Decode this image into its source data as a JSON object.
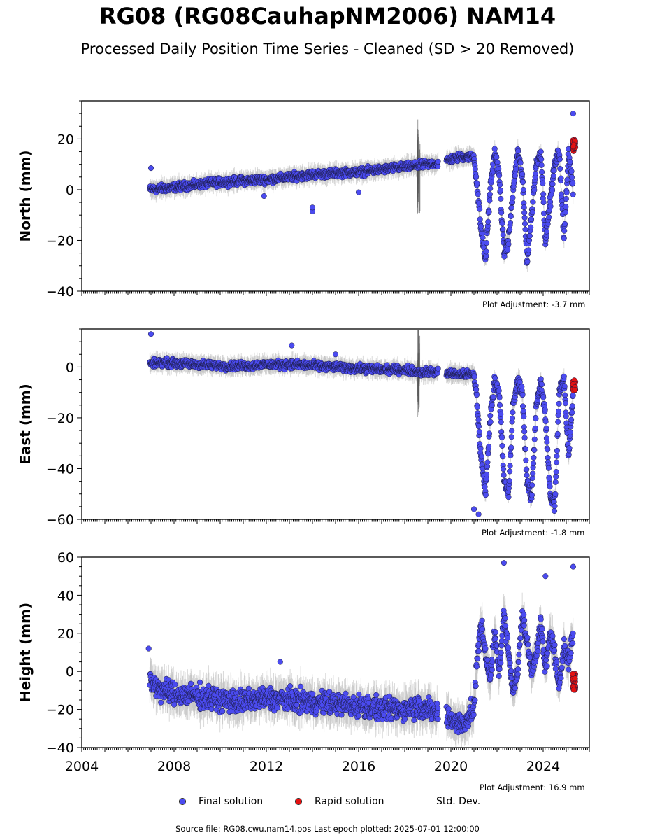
{
  "title": "RG08 (RG08CauhapNM2006) NAM14",
  "subtitle": "Processed Daily Position Time Series - Cleaned (SD > 20 Removed)",
  "legend": {
    "final": "Final solution",
    "rapid": "Rapid solution",
    "std": "Std. Dev."
  },
  "source": "Source file: RG08.cwu.nam14.pos  Last epoch plotted: 2025-07-01 12:00:00",
  "colors": {
    "final": "#4b4bf0",
    "rapid": "#e41111",
    "std": "#bbbbbb",
    "axis": "#000000"
  },
  "chart_data": [
    {
      "type": "scatter",
      "ylabel": "North (mm)",
      "ylim": [
        -40,
        35
      ],
      "yticks": [
        -40,
        -20,
        0,
        20
      ],
      "xlim": [
        2004.0,
        2026.0
      ],
      "adjustment": "Plot Adjustment: -3.7 mm",
      "series": [
        {
          "name": "Final solution",
          "x": [
            2006.9,
            2007.5,
            2008.0,
            2009.0,
            2010.0,
            2011.0,
            2012.0,
            2013.0,
            2014.0,
            2015.0,
            2016.0,
            2017.0,
            2018.0,
            2018.6,
            2019.0,
            2019.5,
            2020.0,
            2020.5,
            2021.0,
            2021.1,
            2021.3,
            2021.5,
            2021.7,
            2021.9,
            2022.1,
            2022.3,
            2022.5,
            2022.7,
            2022.9,
            2023.1,
            2023.3,
            2023.5,
            2023.7,
            2023.9,
            2024.1,
            2024.3,
            2024.5,
            2024.7,
            2024.9,
            2025.1,
            2025.3
          ],
          "y": [
            0,
            0.5,
            1,
            2,
            3,
            3.5,
            4,
            5,
            6,
            6.5,
            7,
            8,
            9,
            9.5,
            10,
            10.5,
            12,
            13,
            13,
            5,
            -15,
            -28,
            0,
            15,
            5,
            -25,
            -20,
            0,
            15,
            5,
            -28,
            -10,
            10,
            15,
            -20,
            -5,
            10,
            15,
            -20,
            15,
            0
          ]
        },
        {
          "name": "Rapid solution",
          "x": [
            2025.3,
            2025.35,
            2025.4,
            2025.45,
            2025.5
          ],
          "y": [
            17,
            19,
            18,
            16,
            18
          ]
        }
      ],
      "outliers": [
        {
          "x": 2007.0,
          "y": 8.5
        },
        {
          "x": 2011.9,
          "y": -2.5
        },
        {
          "x": 2014.0,
          "y": -8.5
        },
        {
          "x": 2014.0,
          "y": -7
        },
        {
          "x": 2016.0,
          "y": -1
        },
        {
          "x": 2025.3,
          "y": 30
        }
      ]
    },
    {
      "type": "scatter",
      "ylabel": "East (mm)",
      "ylim": [
        -60,
        15
      ],
      "yticks": [
        -60,
        -40,
        -20,
        0
      ],
      "xlim": [
        2004.0,
        2026.0
      ],
      "adjustment": "Plot Adjustment: -1.8 mm",
      "series": [
        {
          "name": "Final solution",
          "x": [
            2006.9,
            2007.5,
            2008.0,
            2009.0,
            2010.0,
            2011.0,
            2012.0,
            2013.0,
            2014.0,
            2015.0,
            2016.0,
            2017.0,
            2018.0,
            2018.6,
            2019.0,
            2019.5,
            2020.0,
            2020.5,
            2021.0,
            2021.1,
            2021.3,
            2021.5,
            2021.7,
            2021.9,
            2022.1,
            2022.3,
            2022.5,
            2022.7,
            2022.9,
            2023.1,
            2023.3,
            2023.5,
            2023.7,
            2023.9,
            2024.1,
            2024.3,
            2024.5,
            2024.7,
            2024.9,
            2025.1,
            2025.3
          ],
          "y": [
            1,
            2,
            1.5,
            1,
            0.5,
            0.5,
            1,
            1,
            0.5,
            0,
            -0.5,
            -1,
            -1,
            -2,
            -2,
            -2,
            -2.5,
            -3,
            -3,
            -10,
            -35,
            -50,
            -20,
            -5,
            -10,
            -45,
            -50,
            -15,
            -5,
            -10,
            -45,
            -52,
            -15,
            -5,
            -20,
            -50,
            -55,
            -10,
            -5,
            -35,
            -10
          ]
        },
        {
          "name": "Rapid solution",
          "x": [
            2025.3,
            2025.35,
            2025.4,
            2025.45,
            2025.5
          ],
          "y": [
            -6,
            -8,
            -7,
            -9,
            -7
          ]
        }
      ],
      "outliers": [
        {
          "x": 2007.0,
          "y": 13
        },
        {
          "x": 2013.1,
          "y": 8.5
        },
        {
          "x": 2015.0,
          "y": 5
        },
        {
          "x": 2021.0,
          "y": -56
        },
        {
          "x": 2021.2,
          "y": -58
        }
      ]
    },
    {
      "type": "scatter",
      "ylabel": "Height (mm)",
      "ylim": [
        -40,
        60
      ],
      "yticks": [
        -40,
        -20,
        0,
        20,
        40,
        60
      ],
      "xlim": [
        2004.0,
        2026.0
      ],
      "xticks": [
        2004,
        2008,
        2012,
        2016,
        2020,
        2024
      ],
      "xticklabels": [
        "2004",
        "2008",
        "2012",
        "2016",
        "2020",
        "2024"
      ],
      "adjustment": "Plot Adjustment: 16.9 mm",
      "series": [
        {
          "name": "Final solution",
          "x": [
            2006.9,
            2007.5,
            2008.0,
            2009.0,
            2010.0,
            2011.0,
            2012.0,
            2013.0,
            2014.0,
            2015.0,
            2016.0,
            2017.0,
            2018.0,
            2018.6,
            2019.0,
            2019.5,
            2020.0,
            2020.5,
            2021.0,
            2021.1,
            2021.3,
            2021.5,
            2021.7,
            2021.9,
            2022.1,
            2022.3,
            2022.5,
            2022.7,
            2022.9,
            2023.1,
            2023.3,
            2023.5,
            2023.7,
            2023.9,
            2024.1,
            2024.3,
            2024.5,
            2024.7,
            2024.9,
            2025.1,
            2025.3
          ],
          "y": [
            -5,
            -10,
            -12,
            -13,
            -15,
            -16,
            -14,
            -15,
            -16,
            -17,
            -18,
            -20,
            -20,
            -18,
            -20,
            -22,
            -25,
            -28,
            -20,
            0,
            25,
            10,
            -5,
            20,
            0,
            30,
            10,
            -10,
            0,
            30,
            15,
            0,
            10,
            25,
            0,
            20,
            10,
            -10,
            15,
            5,
            20
          ]
        },
        {
          "name": "Rapid solution",
          "x": [
            2025.3,
            2025.35,
            2025.4,
            2025.45,
            2025.5
          ],
          "y": [
            -2,
            -5,
            -8,
            -4,
            -9
          ]
        }
      ],
      "outliers": [
        {
          "x": 2006.9,
          "y": 12
        },
        {
          "x": 2012.6,
          "y": 5
        },
        {
          "x": 2022.3,
          "y": 57
        },
        {
          "x": 2024.1,
          "y": 50
        },
        {
          "x": 2025.3,
          "y": 55
        }
      ]
    }
  ]
}
